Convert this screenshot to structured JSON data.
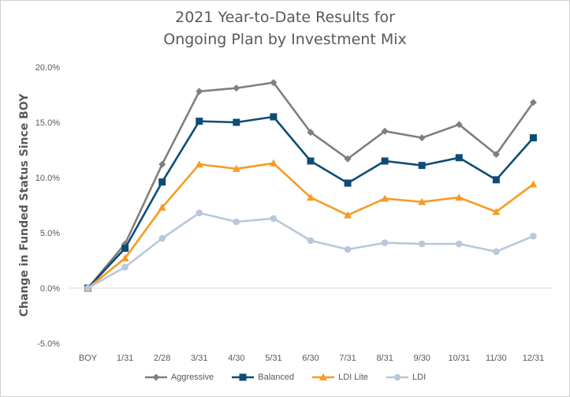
{
  "chart_data": {
    "type": "line",
    "title_lines": [
      "2021 Year-to-Date Results for",
      "Ongoing Plan by Investment Mix"
    ],
    "xlabel": "",
    "ylabel": "Change in Funded Status Since BOY",
    "categories": [
      "BOY",
      "1/31",
      "2/28",
      "3/31",
      "4/30",
      "5/31",
      "6/30",
      "7/31",
      "8/31",
      "9/30",
      "10/31",
      "11/30",
      "12/31"
    ],
    "ylim": [
      -5.0,
      20.0
    ],
    "yticks": [
      -5.0,
      0.0,
      5.0,
      10.0,
      15.0,
      20.0
    ],
    "ytick_labels": [
      "-5.0%",
      "0.0%",
      "5.0%",
      "10.0%",
      "15.0%",
      "20.0%"
    ],
    "grid": false,
    "legend_position": "bottom",
    "series": [
      {
        "name": "Aggressive",
        "color": "#7f7f7f",
        "marker": "diamond",
        "values": [
          0.0,
          4.0,
          11.2,
          17.8,
          18.1,
          18.6,
          14.1,
          11.7,
          14.2,
          13.6,
          14.8,
          12.1,
          16.8
        ]
      },
      {
        "name": "Balanced",
        "color": "#0f4c75",
        "marker": "square",
        "values": [
          0.0,
          3.6,
          9.6,
          15.1,
          15.0,
          15.5,
          11.5,
          9.5,
          11.5,
          11.1,
          11.8,
          9.8,
          13.6
        ]
      },
      {
        "name": "LDI Lite",
        "color": "#f59c26",
        "marker": "triangle",
        "values": [
          0.0,
          2.7,
          7.3,
          11.2,
          10.8,
          11.3,
          8.2,
          6.6,
          8.1,
          7.8,
          8.2,
          6.9,
          9.4
        ]
      },
      {
        "name": "LDI",
        "color": "#b8c8dc",
        "marker": "circle",
        "values": [
          0.0,
          1.9,
          4.5,
          6.8,
          6.0,
          6.3,
          4.3,
          3.5,
          4.1,
          4.0,
          4.0,
          3.3,
          4.7
        ]
      }
    ]
  }
}
